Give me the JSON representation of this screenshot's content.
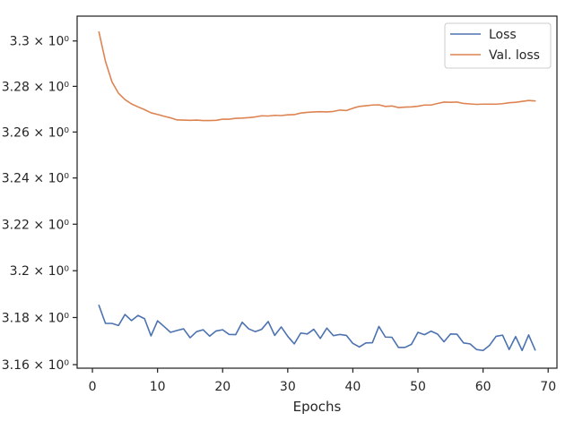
{
  "chart_data": {
    "type": "line",
    "xlabel": "Epochs",
    "ylabel": "",
    "xlim": [
      -2.35,
      71.35
    ],
    "ylim": [
      3.1585,
      3.311
    ],
    "y_scale": "log",
    "grid": false,
    "legend_position": "top-right",
    "x_ticks": [
      0,
      10,
      20,
      30,
      40,
      50,
      60,
      70
    ],
    "x_tick_labels": [
      "0",
      "10",
      "20",
      "30",
      "40",
      "50",
      "60",
      "70"
    ],
    "y_ticks": [
      3.16,
      3.18,
      3.2,
      3.22,
      3.24,
      3.26,
      3.28,
      3.3
    ],
    "y_tick_labels": [
      "3.16 × 10⁰",
      "3.18 × 10⁰",
      "3.2 × 10⁰",
      "3.22 × 10⁰",
      "3.24 × 10⁰",
      "3.26 × 10⁰",
      "3.28 × 10⁰",
      "3.3 × 10⁰"
    ],
    "x": [
      1,
      2,
      3,
      4,
      5,
      6,
      7,
      8,
      9,
      10,
      11,
      12,
      13,
      14,
      15,
      16,
      17,
      18,
      19,
      20,
      21,
      22,
      23,
      24,
      25,
      26,
      27,
      28,
      29,
      30,
      31,
      32,
      33,
      34,
      35,
      36,
      37,
      38,
      39,
      40,
      41,
      42,
      43,
      44,
      45,
      46,
      47,
      48,
      49,
      50,
      51,
      52,
      53,
      54,
      55,
      56,
      57,
      58,
      59,
      60,
      61,
      62,
      63,
      64,
      65,
      66,
      67,
      68
    ],
    "series": [
      {
        "name": "Loss",
        "color": "#4c72b0",
        "values": [
          3.1852,
          3.1775,
          3.1775,
          3.1766,
          3.1813,
          3.1787,
          3.1809,
          3.1795,
          3.1722,
          3.1786,
          3.1762,
          3.1737,
          3.1745,
          3.1752,
          3.1714,
          3.174,
          3.1748,
          3.1721,
          3.1743,
          3.1748,
          3.1728,
          3.1727,
          3.178,
          3.1752,
          3.174,
          3.175,
          3.1783,
          3.1724,
          3.176,
          3.172,
          3.1688,
          3.1734,
          3.173,
          3.175,
          3.1711,
          3.1755,
          3.1723,
          3.1728,
          3.1724,
          3.169,
          3.1675,
          3.1692,
          3.1693,
          3.1762,
          3.1717,
          3.1716,
          3.1673,
          3.1673,
          3.1686,
          3.1737,
          3.1727,
          3.1742,
          3.173,
          3.1697,
          3.173,
          3.1729,
          3.1692,
          3.1688,
          3.1664,
          3.166,
          3.1682,
          3.172,
          3.1725,
          3.1664,
          3.1719,
          3.166,
          3.1726,
          3.1662
        ]
      },
      {
        "name": "Val. loss",
        "color": "#dd8452",
        "values": [
          3.304,
          3.291,
          3.282,
          3.277,
          3.2742,
          3.2723,
          3.271,
          3.2698,
          3.2684,
          3.2677,
          3.2669,
          3.2662,
          3.2653,
          3.2652,
          3.2651,
          3.2652,
          3.265,
          3.265,
          3.2651,
          3.2656,
          3.2656,
          3.266,
          3.2661,
          3.2663,
          3.2666,
          3.2671,
          3.267,
          3.2673,
          3.2672,
          3.2675,
          3.2676,
          3.2683,
          3.2686,
          3.2688,
          3.2689,
          3.2688,
          3.269,
          3.2696,
          3.2694,
          3.2704,
          3.2712,
          3.2715,
          3.2718,
          3.2719,
          3.2712,
          3.2714,
          3.2707,
          3.2709,
          3.271,
          3.2713,
          3.2718,
          3.2718,
          3.2725,
          3.2731,
          3.273,
          3.2731,
          3.2725,
          3.2723,
          3.2721,
          3.2722,
          3.2722,
          3.2722,
          3.2724,
          3.2728,
          3.273,
          3.2734,
          3.2738,
          3.2736
        ]
      }
    ]
  }
}
